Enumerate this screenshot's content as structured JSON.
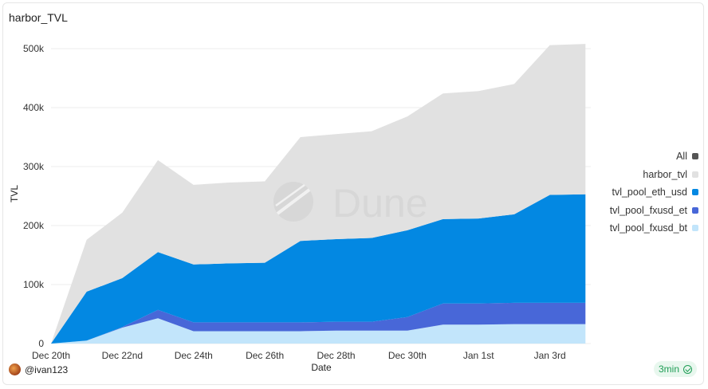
{
  "title": "harbor_TVL",
  "author": "@ivan123",
  "refresh_badge": "3min",
  "watermark": "Dune",
  "legend": {
    "all_label": "All",
    "all_color": "#555555"
  },
  "chart_data": {
    "type": "area",
    "stacked": true,
    "title": "harbor_TVL",
    "xlabel": "Date",
    "ylabel": "TVL",
    "ylim": [
      0,
      500000
    ],
    "y_ticks": [
      0,
      100000,
      200000,
      300000,
      400000,
      500000
    ],
    "y_tick_labels": [
      "0",
      "100k",
      "200k",
      "300k",
      "400k",
      "500k"
    ],
    "x": [
      "2023-12-20",
      "2023-12-21",
      "2023-12-22",
      "2023-12-23",
      "2023-12-24",
      "2023-12-25",
      "2023-12-26",
      "2023-12-27",
      "2023-12-28",
      "2023-12-29",
      "2023-12-30",
      "2023-12-31",
      "2024-01-01",
      "2024-01-02",
      "2024-01-03",
      "2024-01-04"
    ],
    "x_tick_labels": [
      "Dec 20th",
      "Dec 22nd",
      "Dec 24th",
      "Dec 26th",
      "Dec 28th",
      "Dec 30th",
      "Jan 1st",
      "Jan 3rd"
    ],
    "x_tick_index": [
      0,
      2,
      4,
      6,
      8,
      10,
      12,
      14
    ],
    "x_span": [
      0,
      15.15
    ],
    "series": [
      {
        "name": "tvl_pool_fxusd_bt",
        "color": "#c2e5fb",
        "values": [
          0,
          5000,
          27000,
          43000,
          21000,
          21000,
          21000,
          21000,
          22000,
          22000,
          22000,
          32000,
          32000,
          33000,
          33000,
          33000
        ]
      },
      {
        "name": "tvl_pool_fxusd_et",
        "color": "#4867d8",
        "values": [
          0,
          0,
          1000,
          14000,
          15000,
          15000,
          15000,
          15000,
          15000,
          15000,
          23000,
          36000,
          36000,
          36000,
          36000,
          36000
        ]
      },
      {
        "name": "tvl_pool_eth_usd",
        "color": "#0388e2",
        "values": [
          0,
          83000,
          83000,
          98000,
          98000,
          100000,
          101000,
          138000,
          140000,
          142000,
          147000,
          143000,
          144000,
          150000,
          183000,
          184000
        ]
      },
      {
        "name": "harbor_tvl",
        "color": "#e1e1e1",
        "values": [
          0,
          88000,
          111000,
          156000,
          135000,
          137000,
          138000,
          176000,
          178000,
          181000,
          193000,
          213000,
          216000,
          221000,
          254000,
          255000
        ]
      }
    ]
  }
}
